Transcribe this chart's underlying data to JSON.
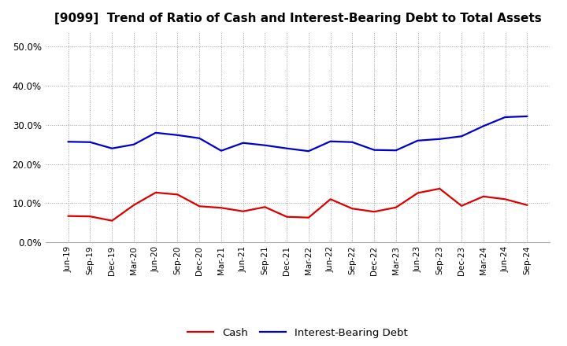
{
  "title": "[9099]  Trend of Ratio of Cash and Interest-Bearing Debt to Total Assets",
  "labels": [
    "Jun-19",
    "Sep-19",
    "Dec-19",
    "Mar-20",
    "Jun-20",
    "Sep-20",
    "Dec-20",
    "Mar-21",
    "Jun-21",
    "Sep-21",
    "Dec-21",
    "Mar-22",
    "Jun-22",
    "Sep-22",
    "Dec-22",
    "Mar-23",
    "Jun-23",
    "Sep-23",
    "Dec-23",
    "Mar-24",
    "Jun-24",
    "Sep-24"
  ],
  "cash": [
    0.067,
    0.066,
    0.055,
    0.095,
    0.127,
    0.122,
    0.092,
    0.088,
    0.079,
    0.09,
    0.065,
    0.063,
    0.11,
    0.086,
    0.078,
    0.089,
    0.126,
    0.137,
    0.093,
    0.117,
    0.11,
    0.095
  ],
  "ibd": [
    0.257,
    0.256,
    0.24,
    0.25,
    0.28,
    0.274,
    0.266,
    0.234,
    0.254,
    0.248,
    0.24,
    0.233,
    0.258,
    0.256,
    0.236,
    0.235,
    0.26,
    0.264,
    0.271,
    0.297,
    0.32,
    0.322
  ],
  "cash_color": "#dd0000",
  "ibd_color": "#0000cc",
  "bg_color": "#ffffff",
  "plot_bg": "#ffffff",
  "grid_color": "#999999",
  "ylim": [
    0.0,
    0.54
  ],
  "yticks": [
    0.0,
    0.1,
    0.2,
    0.3,
    0.4,
    0.5
  ],
  "legend_cash": "Cash",
  "legend_ibd": "Interest-Bearing Debt",
  "line_width": 1.6,
  "title_fontsize": 11,
  "tick_fontsize": 7.5,
  "ytick_fontsize": 8.5
}
